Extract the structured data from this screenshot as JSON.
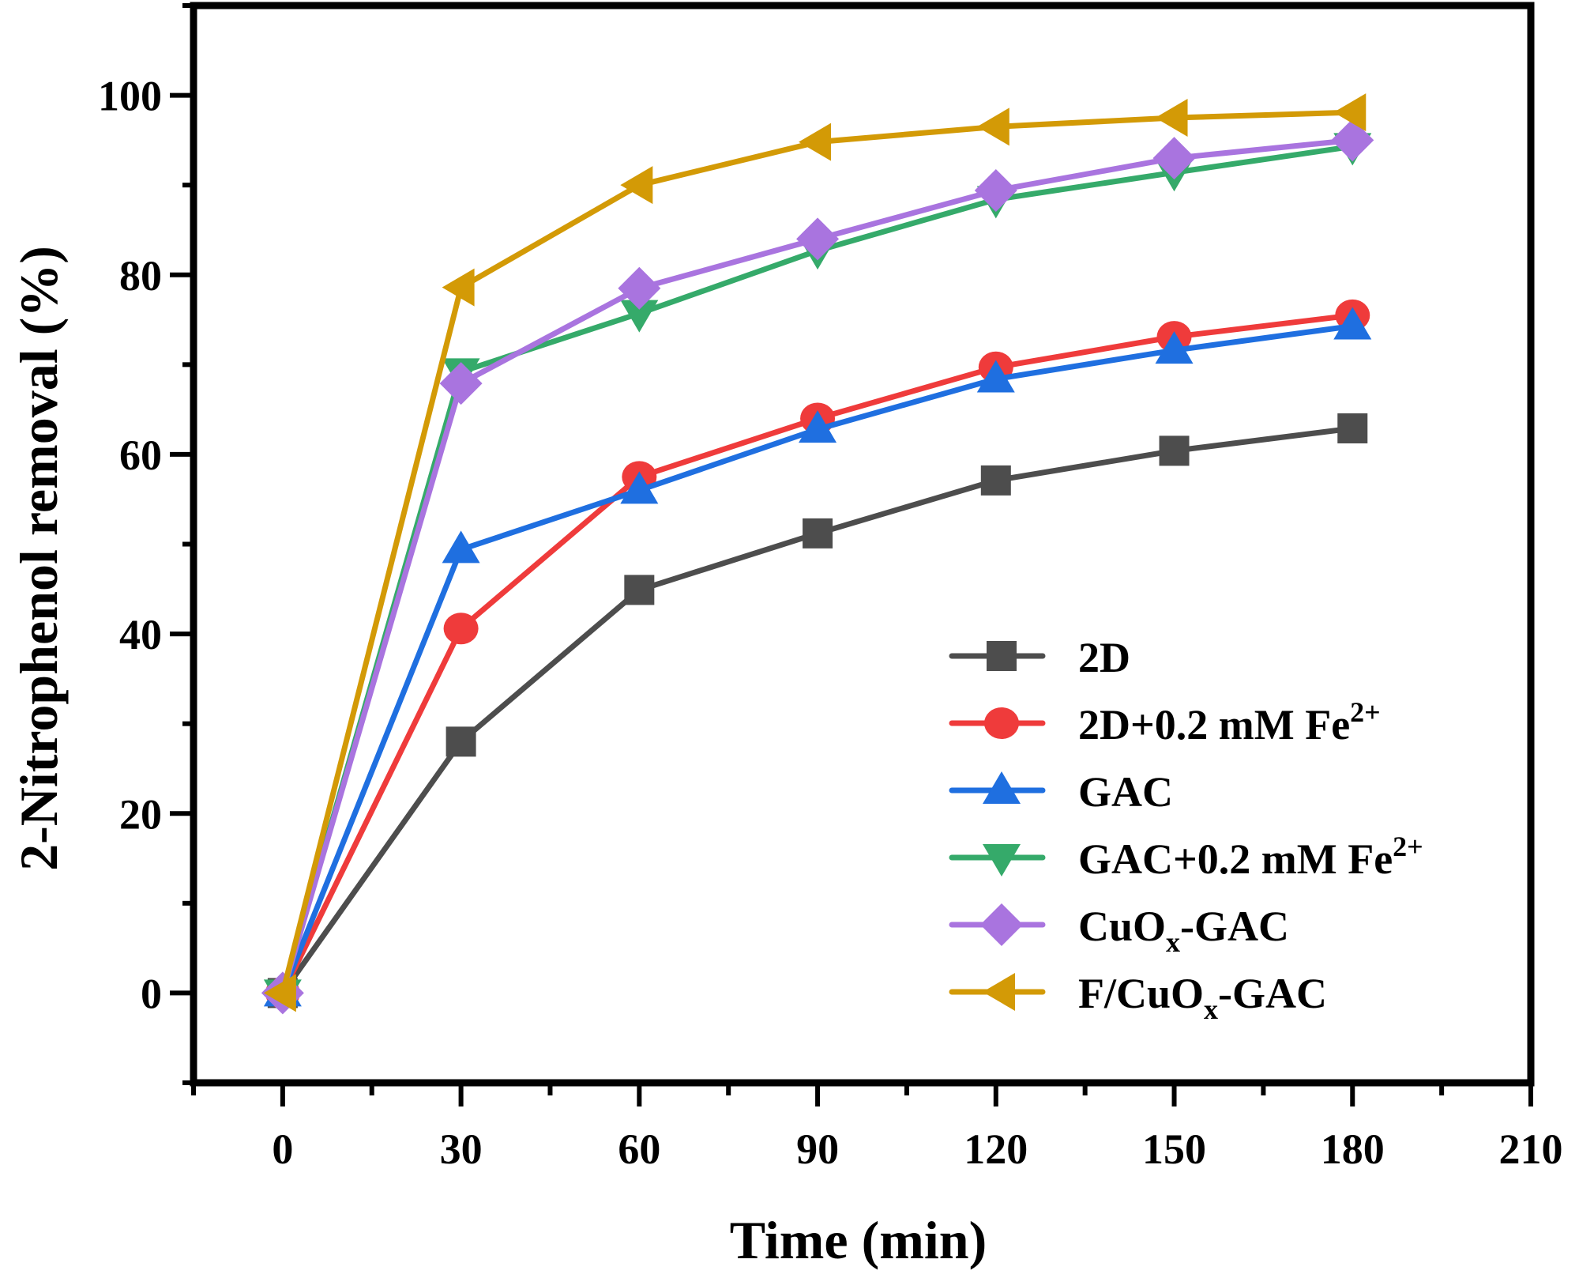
{
  "chart_data": {
    "type": "line",
    "title": "",
    "xlabel": "Time (min)",
    "ylabel": "2-Nitrophenol removal (%)",
    "xlim": [
      -15,
      210
    ],
    "ylim": [
      -10,
      110
    ],
    "x_ticks": [
      0,
      30,
      60,
      90,
      120,
      150,
      180,
      210
    ],
    "x_minor_step": 15,
    "y_ticks": [
      0,
      20,
      40,
      60,
      80,
      100
    ],
    "y_minor_step": 10,
    "grid": false,
    "legend_position": "lower-right",
    "x": [
      0,
      30,
      60,
      90,
      120,
      150,
      180
    ],
    "series": [
      {
        "name": "2D",
        "label_parts": [
          {
            "t": "2D"
          }
        ],
        "marker": "square",
        "color": "#4d4d4d",
        "values": [
          0,
          28.0,
          44.9,
          51.2,
          57.1,
          60.4,
          62.9
        ]
      },
      {
        "name": "2D+0.2 mM Fe2+",
        "label_parts": [
          {
            "t": "2D+0.2 mM Fe"
          },
          {
            "t": "2+",
            "sup": true
          }
        ],
        "marker": "circle",
        "color": "#ef3b3b",
        "values": [
          0,
          40.6,
          57.5,
          64.0,
          69.7,
          73.1,
          75.5
        ]
      },
      {
        "name": "GAC",
        "label_parts": [
          {
            "t": "GAC"
          }
        ],
        "marker": "triangle-up",
        "color": "#1f6fe0",
        "values": [
          0,
          49.4,
          56.0,
          62.8,
          68.4,
          71.6,
          74.3
        ]
      },
      {
        "name": "GAC+0.2 mM Fe2+",
        "label_parts": [
          {
            "t": "GAC+0.2 mM Fe"
          },
          {
            "t": "2+",
            "sup": true
          }
        ],
        "marker": "triangle-down",
        "color": "#35aa6a",
        "values": [
          0,
          69.2,
          75.7,
          82.7,
          88.4,
          91.4,
          94.3
        ]
      },
      {
        "name": "CuOx-GAC",
        "label_parts": [
          {
            "t": "CuO"
          },
          {
            "t": "x",
            "sub": true
          },
          {
            "t": "-GAC"
          }
        ],
        "marker": "diamond",
        "color": "#a974df",
        "values": [
          0,
          67.9,
          78.5,
          84.0,
          89.4,
          93.0,
          95.0
        ]
      },
      {
        "name": "F/CuOx-GAC",
        "label_parts": [
          {
            "t": "F/CuO"
          },
          {
            "t": "x",
            "sub": true
          },
          {
            "t": "-GAC"
          }
        ],
        "marker": "triangle-left",
        "color": "#d39a06",
        "values": [
          0,
          78.6,
          90.0,
          94.8,
          96.5,
          97.5,
          98.1
        ]
      }
    ]
  }
}
